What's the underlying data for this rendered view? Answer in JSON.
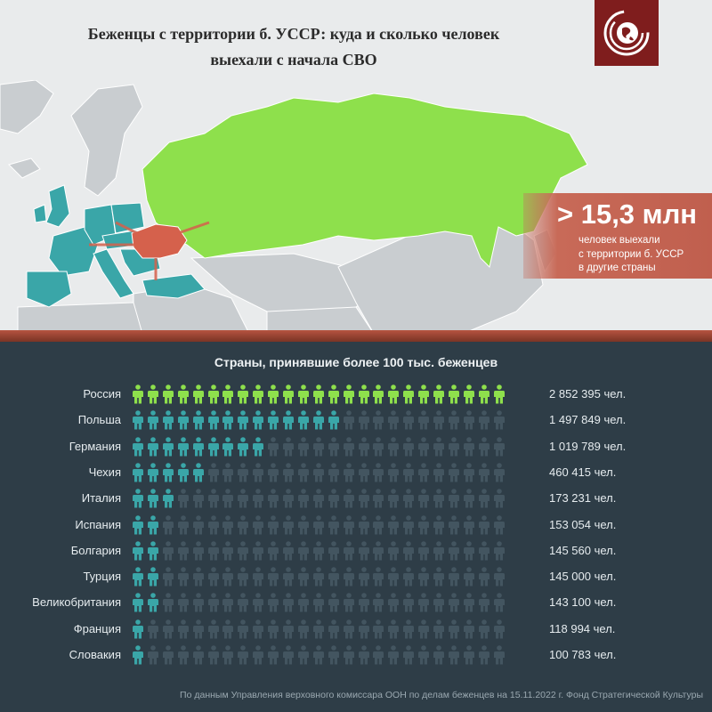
{
  "title": {
    "line1": "Беженцы с территории б. УССР: куда и сколько человек",
    "line2": "выехали с начала СВО"
  },
  "logo": {
    "icon": "globe-swirl-logo-icon"
  },
  "callout": {
    "headline": "> 15,3 млн",
    "line1": "человек выехали",
    "line2": "с территории б. УССР",
    "line3": "в другие страны"
  },
  "chart_title": "Страны, принявшие более 100 тыс. беженцев",
  "source": "По данным Управления верховного комиссара ООН по делам беженцев на 15.11.2022 г. Фонд Стратегической Культуры",
  "colors": {
    "russia": "#8ee04c",
    "europe": "#3aa6a8",
    "ukraine": "#d5614c",
    "inactive_icon": "#435560",
    "background": "#2e3d47"
  },
  "chart_data": {
    "type": "pictogram",
    "title": "Страны, принявшие более 100 тыс. беженцев",
    "icons_total": 25,
    "rows": [
      {
        "country": "Россия",
        "value": 2852395,
        "label": "2 852 395 чел.",
        "icons": 25,
        "color": "#8ee04c"
      },
      {
        "country": "Польша",
        "value": 1497849,
        "label": "1 497 849 чел.",
        "icons": 14,
        "color": "#3aa6a8"
      },
      {
        "country": "Германия",
        "value": 1019789,
        "label": "1 019 789 чел.",
        "icons": 9,
        "color": "#3aa6a8"
      },
      {
        "country": "Чехия",
        "value": 460415,
        "label": "460 415 чел.",
        "icons": 5,
        "color": "#3aa6a8"
      },
      {
        "country": "Италия",
        "value": 173231,
        "label": "173 231 чел.",
        "icons": 3,
        "color": "#3aa6a8"
      },
      {
        "country": "Испания",
        "value": 153054,
        "label": "153 054 чел.",
        "icons": 2,
        "color": "#3aa6a8"
      },
      {
        "country": "Болгария",
        "value": 145560,
        "label": "145 560 чел.",
        "icons": 2,
        "color": "#3aa6a8"
      },
      {
        "country": "Турция",
        "value": 145000,
        "label": "145 000 чел.",
        "icons": 2,
        "color": "#3aa6a8"
      },
      {
        "country": "Великобритания",
        "value": 143100,
        "label": "143 100 чел.",
        "icons": 2,
        "color": "#3aa6a8"
      },
      {
        "country": "Франция",
        "value": 118994,
        "label": "118 994 чел.",
        "icons": 1,
        "color": "#3aa6a8"
      },
      {
        "country": "Словакия",
        "value": 100783,
        "label": "100 783 чел.",
        "icons": 1,
        "color": "#3aa6a8"
      }
    ]
  }
}
